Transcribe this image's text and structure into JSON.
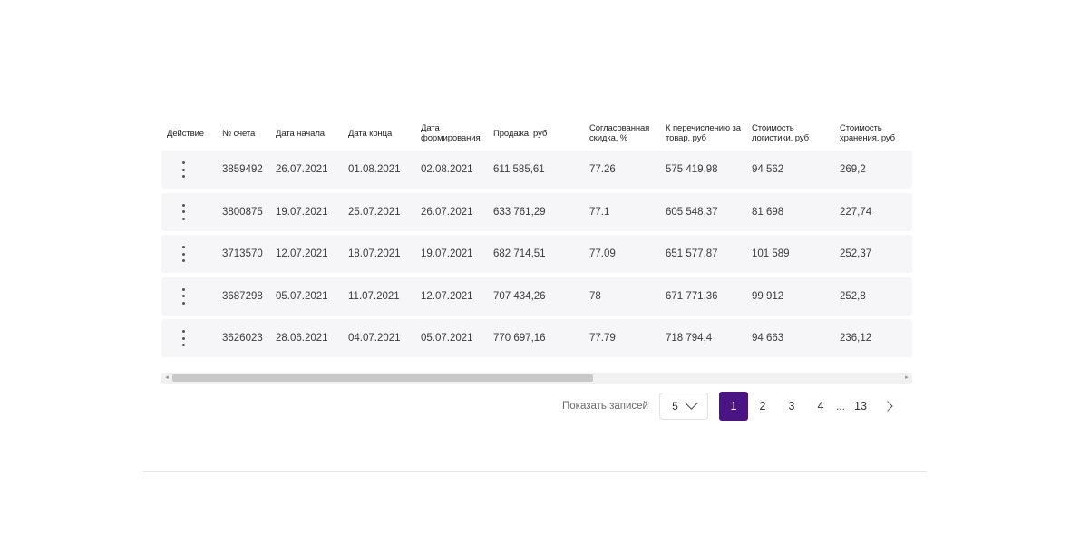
{
  "table": {
    "headers": [
      "Действие",
      "№ счета",
      "Дата начала",
      "Дата конца",
      "Дата формирования",
      "Продажа, руб",
      "Согласованная скидка, %",
      "К перечислению за товар, руб",
      "Стоимость логистики, руб",
      "Стоимость хранения, руб"
    ],
    "rows": [
      [
        "3859492",
        "26.07.2021",
        "01.08.2021",
        "02.08.2021",
        "611 585,61",
        "77.26",
        "575 419,98",
        "94 562",
        "269,2"
      ],
      [
        "3800875",
        "19.07.2021",
        "25.07.2021",
        "26.07.2021",
        "633 761,29",
        "77.1",
        "605 548,37",
        "81 698",
        "227,74"
      ],
      [
        "3713570",
        "12.07.2021",
        "18.07.2021",
        "19.07.2021",
        "682 714,51",
        "77.09",
        "651 577,87",
        "101 589",
        "252,37"
      ],
      [
        "3687298",
        "05.07.2021",
        "11.07.2021",
        "12.07.2021",
        "707 434,26",
        "78",
        "671 771,36",
        "99 912",
        "252,8"
      ],
      [
        "3626023",
        "28.06.2021",
        "04.07.2021",
        "05.07.2021",
        "770 697,16",
        "77.79",
        "718 794,4",
        "94 663",
        "236,12"
      ]
    ]
  },
  "pagination": {
    "show_label": "Показать записей",
    "per_page": "5",
    "pages": [
      "1",
      "2",
      "3",
      "4"
    ],
    "ellipsis": "...",
    "last_page": "13",
    "active_page": "1",
    "accent_color": "#4a1486"
  },
  "icons": {
    "row_action": "kebab-menu-icon",
    "dropdown": "chevron-down-icon",
    "next": "chevron-right-icon"
  }
}
